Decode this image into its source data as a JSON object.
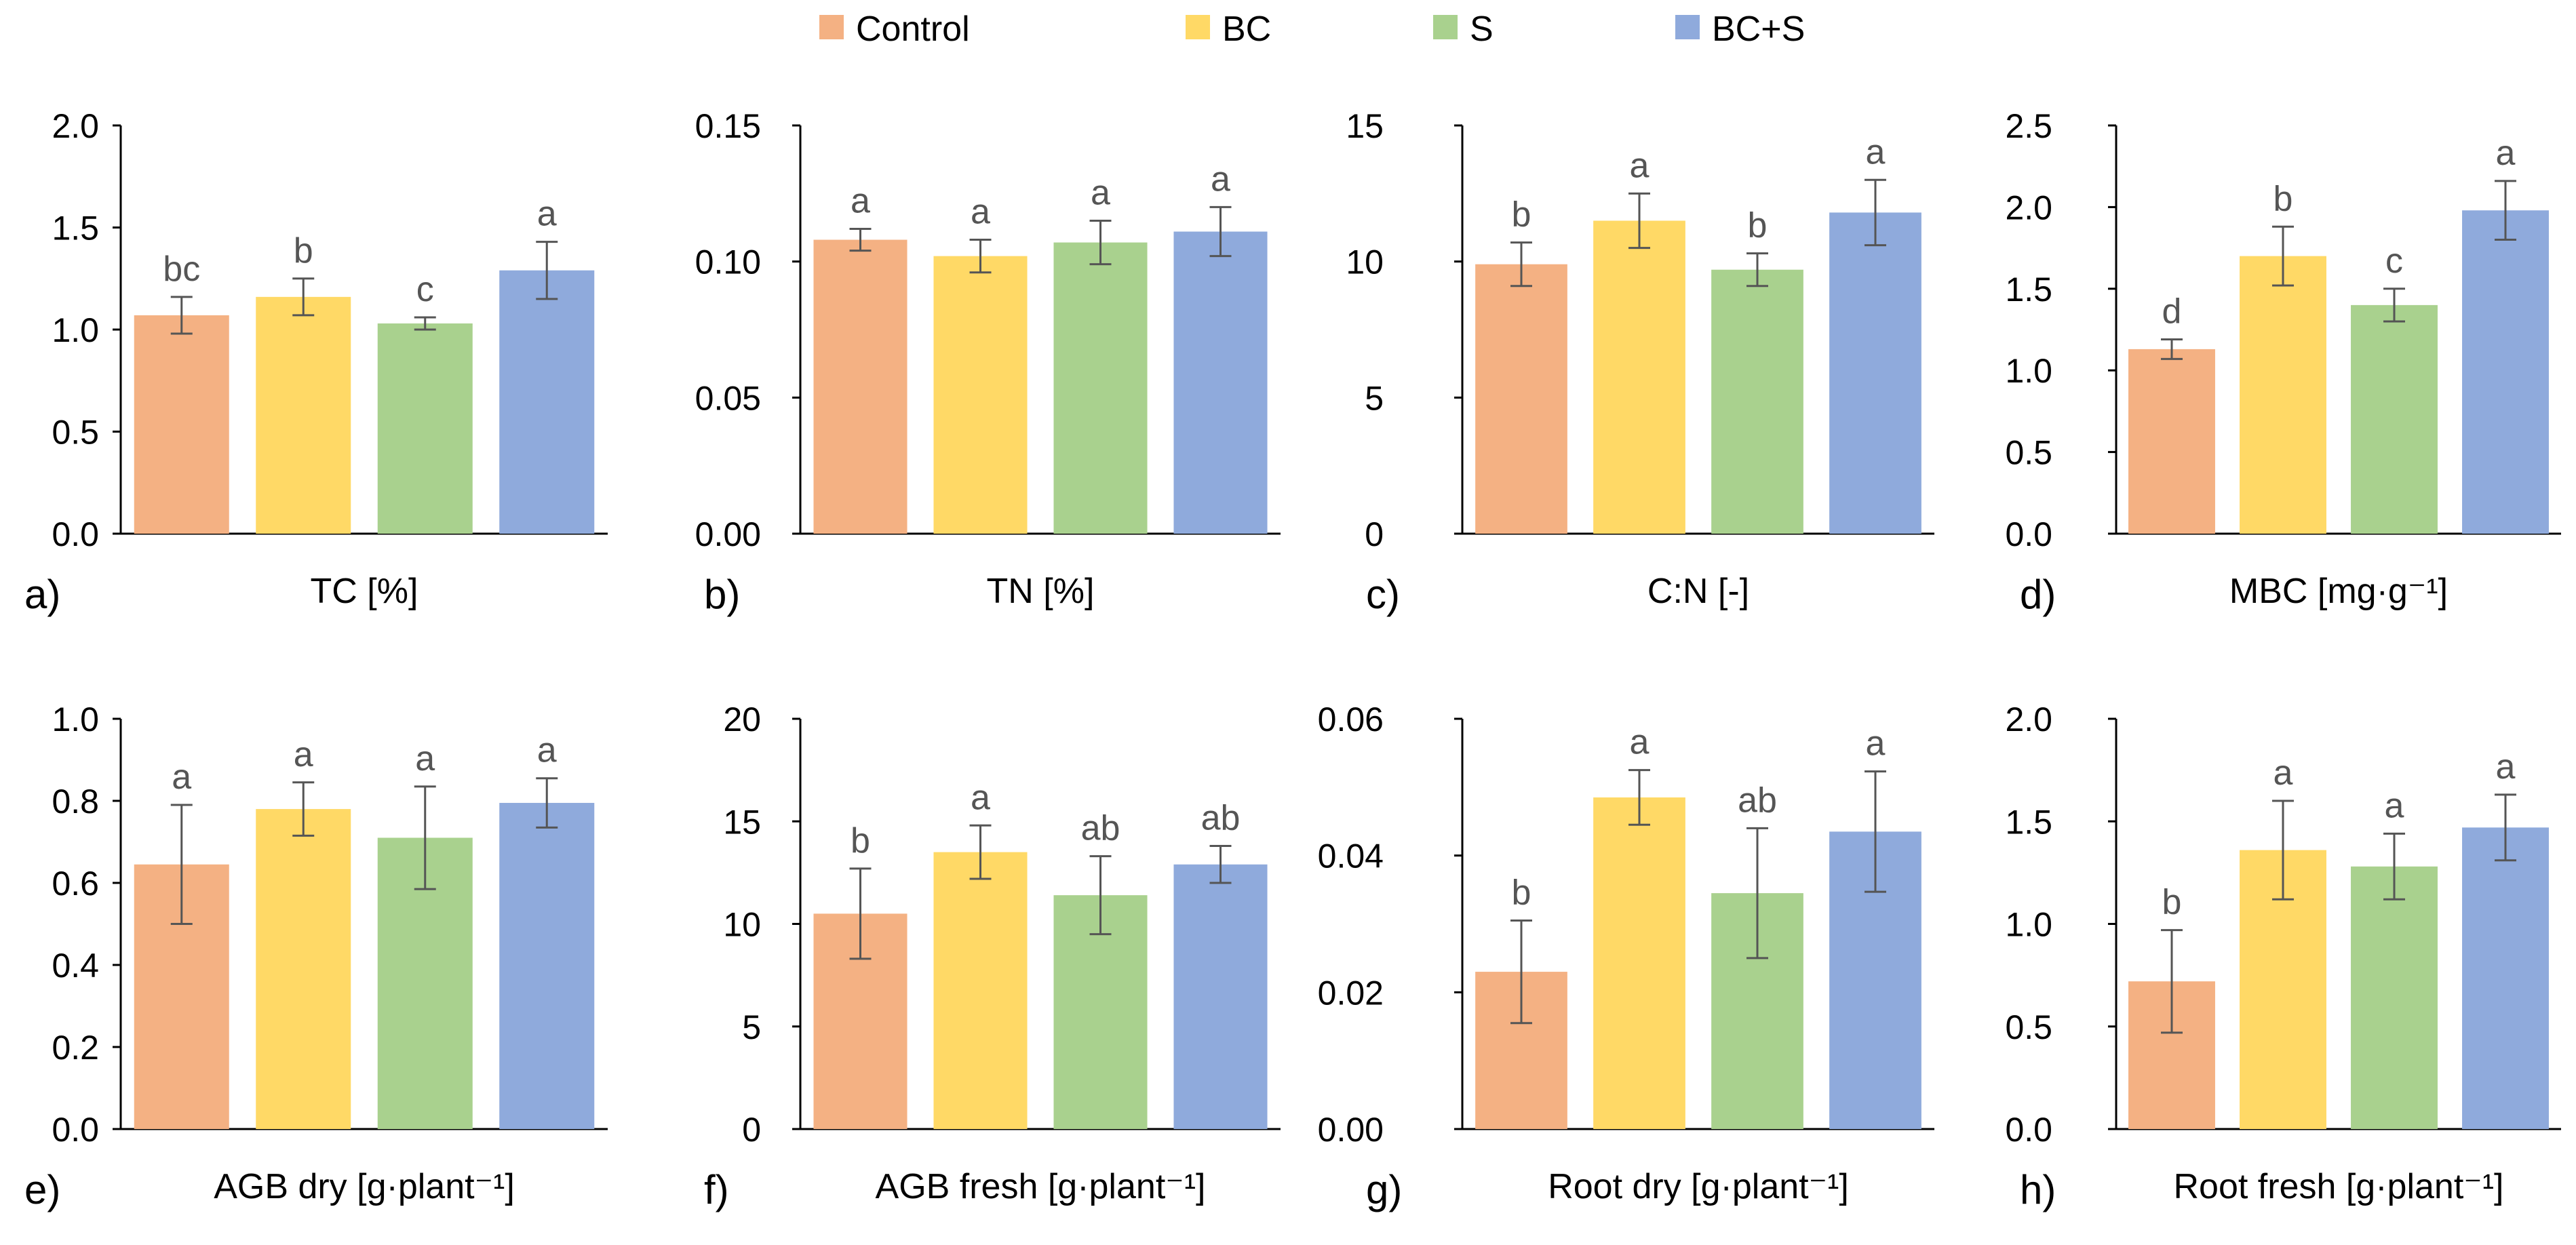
{
  "legend": [
    {
      "name": "Control",
      "color": "#F4B183"
    },
    {
      "name": "BC",
      "color": "#FFD966"
    },
    {
      "name": "S",
      "color": "#A9D18E"
    },
    {
      "name": "BC+S",
      "color": "#8FAADC"
    }
  ],
  "chart_data": [
    {
      "type": "bar",
      "panel": "a)",
      "xlabel": "TC [%]",
      "categories": [
        "Control",
        "BC",
        "S",
        "BC+S"
      ],
      "values": [
        1.07,
        1.16,
        1.03,
        1.29
      ],
      "errors": [
        0.09,
        0.09,
        0.03,
        0.14
      ],
      "letters": [
        "bc",
        "b",
        "c",
        "a"
      ],
      "ylim": [
        0,
        2.0
      ],
      "yticks": [
        "0.0",
        "0.5",
        "1.0",
        "1.5",
        "2.0"
      ]
    },
    {
      "type": "bar",
      "panel": "b)",
      "xlabel": "TN [%]",
      "categories": [
        "Control",
        "BC",
        "S",
        "BC+S"
      ],
      "values": [
        0.108,
        0.102,
        0.107,
        0.111
      ],
      "errors": [
        0.004,
        0.006,
        0.008,
        0.009
      ],
      "letters": [
        "a",
        "a",
        "a",
        "a"
      ],
      "ylim": [
        0,
        0.15
      ],
      "yticks": [
        "0.00",
        "0.05",
        "0.10",
        "0.15"
      ]
    },
    {
      "type": "bar",
      "panel": "c)",
      "xlabel": "C:N [-]",
      "categories": [
        "Control",
        "BC",
        "S",
        "BC+S"
      ],
      "values": [
        9.9,
        11.5,
        9.7,
        11.8
      ],
      "errors": [
        0.8,
        1.0,
        0.6,
        1.2
      ],
      "letters": [
        "b",
        "a",
        "b",
        "a"
      ],
      "ylim": [
        0,
        15
      ],
      "yticks": [
        "0",
        "5",
        "10",
        "15"
      ]
    },
    {
      "type": "bar",
      "panel": "d)",
      "xlabel": "MBC [mg·g⁻¹]",
      "categories": [
        "Control",
        "BC",
        "S",
        "BC+S"
      ],
      "values": [
        1.13,
        1.7,
        1.4,
        1.98
      ],
      "errors": [
        0.06,
        0.18,
        0.1,
        0.18
      ],
      "letters": [
        "d",
        "b",
        "c",
        "a"
      ],
      "ylim": [
        0,
        2.5
      ],
      "yticks": [
        "0.0",
        "0.5",
        "1.0",
        "1.5",
        "2.0",
        "2.5"
      ]
    },
    {
      "type": "bar",
      "panel": "e)",
      "xlabel": "AGB dry [g·plant⁻¹]",
      "categories": [
        "Control",
        "BC",
        "S",
        "BC+S"
      ],
      "values": [
        0.645,
        0.78,
        0.71,
        0.795
      ],
      "errors": [
        0.145,
        0.065,
        0.125,
        0.06
      ],
      "letters": [
        "a",
        "a",
        "a",
        "a"
      ],
      "ylim": [
        0,
        1.0
      ],
      "yticks": [
        "0.0",
        "0.2",
        "0.4",
        "0.6",
        "0.8",
        "1.0"
      ]
    },
    {
      "type": "bar",
      "panel": "f)",
      "xlabel": "AGB fresh [g·plant⁻¹]",
      "categories": [
        "Control",
        "BC",
        "S",
        "BC+S"
      ],
      "values": [
        10.5,
        13.5,
        11.4,
        12.9
      ],
      "errors": [
        2.2,
        1.3,
        1.9,
        0.9
      ],
      "letters": [
        "b",
        "a",
        "ab",
        "ab"
      ],
      "ylim": [
        0,
        20
      ],
      "yticks": [
        "0",
        "5",
        "10",
        "15",
        "20"
      ]
    },
    {
      "type": "bar",
      "panel": "g)",
      "xlabel": "Root dry [g·plant⁻¹]",
      "categories": [
        "Control",
        "BC",
        "S",
        "BC+S"
      ],
      "values": [
        0.023,
        0.0485,
        0.0345,
        0.0435
      ],
      "errors": [
        0.0075,
        0.004,
        0.0095,
        0.0088
      ],
      "letters": [
        "b",
        "a",
        "ab",
        "a"
      ],
      "ylim": [
        0,
        0.06
      ],
      "yticks": [
        "0.00",
        "0.02",
        "0.04",
        "0.06"
      ]
    },
    {
      "type": "bar",
      "panel": "h)",
      "xlabel": "Root fresh [g·plant⁻¹]",
      "categories": [
        "Control",
        "BC",
        "S",
        "BC+S"
      ],
      "values": [
        0.72,
        1.36,
        1.28,
        1.47
      ],
      "errors": [
        0.25,
        0.24,
        0.16,
        0.16
      ],
      "letters": [
        "b",
        "a",
        "a",
        "a"
      ],
      "ylim": [
        0,
        2.0
      ],
      "yticks": [
        "0.0",
        "0.5",
        "1.0",
        "1.5",
        "2.0"
      ]
    }
  ]
}
